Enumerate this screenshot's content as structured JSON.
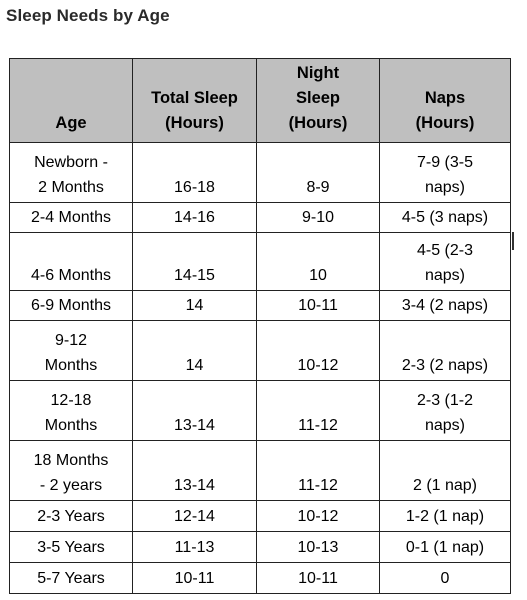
{
  "title": "Sleep Needs by Age",
  "headers": {
    "age": "Age",
    "total": [
      "Total Sleep",
      "(Hours)"
    ],
    "night": [
      "Night",
      "Sleep",
      "(Hours)"
    ],
    "naps": [
      "Naps",
      "(Hours)"
    ]
  },
  "rows": [
    {
      "age": [
        "Newborn -",
        "2 Months"
      ],
      "total": "16-18",
      "night": "8-9",
      "naps": [
        "7-9 (3-5",
        "naps)"
      ]
    },
    {
      "age": [
        "2-4 Months"
      ],
      "total": "14-16",
      "night": "9-10",
      "naps": [
        "4-5 (3 naps)"
      ]
    },
    {
      "age": [
        "4-6 Months"
      ],
      "total": "14-15",
      "night": "10",
      "naps": [
        "4-5 (2-3",
        "naps)"
      ]
    },
    {
      "age": [
        "6-9 Months"
      ],
      "total": "14",
      "night": "10-11",
      "naps": [
        "3-4 (2 naps)"
      ]
    },
    {
      "age": [
        "9-12",
        "Months"
      ],
      "total": "14",
      "night": "10-12",
      "naps": [
        "2-3 (2 naps)"
      ]
    },
    {
      "age": [
        "12-18",
        "Months"
      ],
      "total": "13-14",
      "night": "11-12",
      "naps": [
        "2-3 (1-2",
        "naps)"
      ]
    },
    {
      "age": [
        "18 Months",
        "- 2 years"
      ],
      "total": "13-14",
      "night": "11-12",
      "naps": [
        "2 (1 nap)"
      ]
    },
    {
      "age": [
        "2-3 Years"
      ],
      "total": "12-14",
      "night": "10-12",
      "naps": [
        "1-2 (1 nap)"
      ]
    },
    {
      "age": [
        "3-5 Years"
      ],
      "total": "11-13",
      "night": "10-13",
      "naps": [
        "0-1 (1 nap)"
      ]
    },
    {
      "age": [
        "5-7 Years"
      ],
      "total": "10-11",
      "night": "10-11",
      "naps": [
        "0"
      ]
    }
  ]
}
